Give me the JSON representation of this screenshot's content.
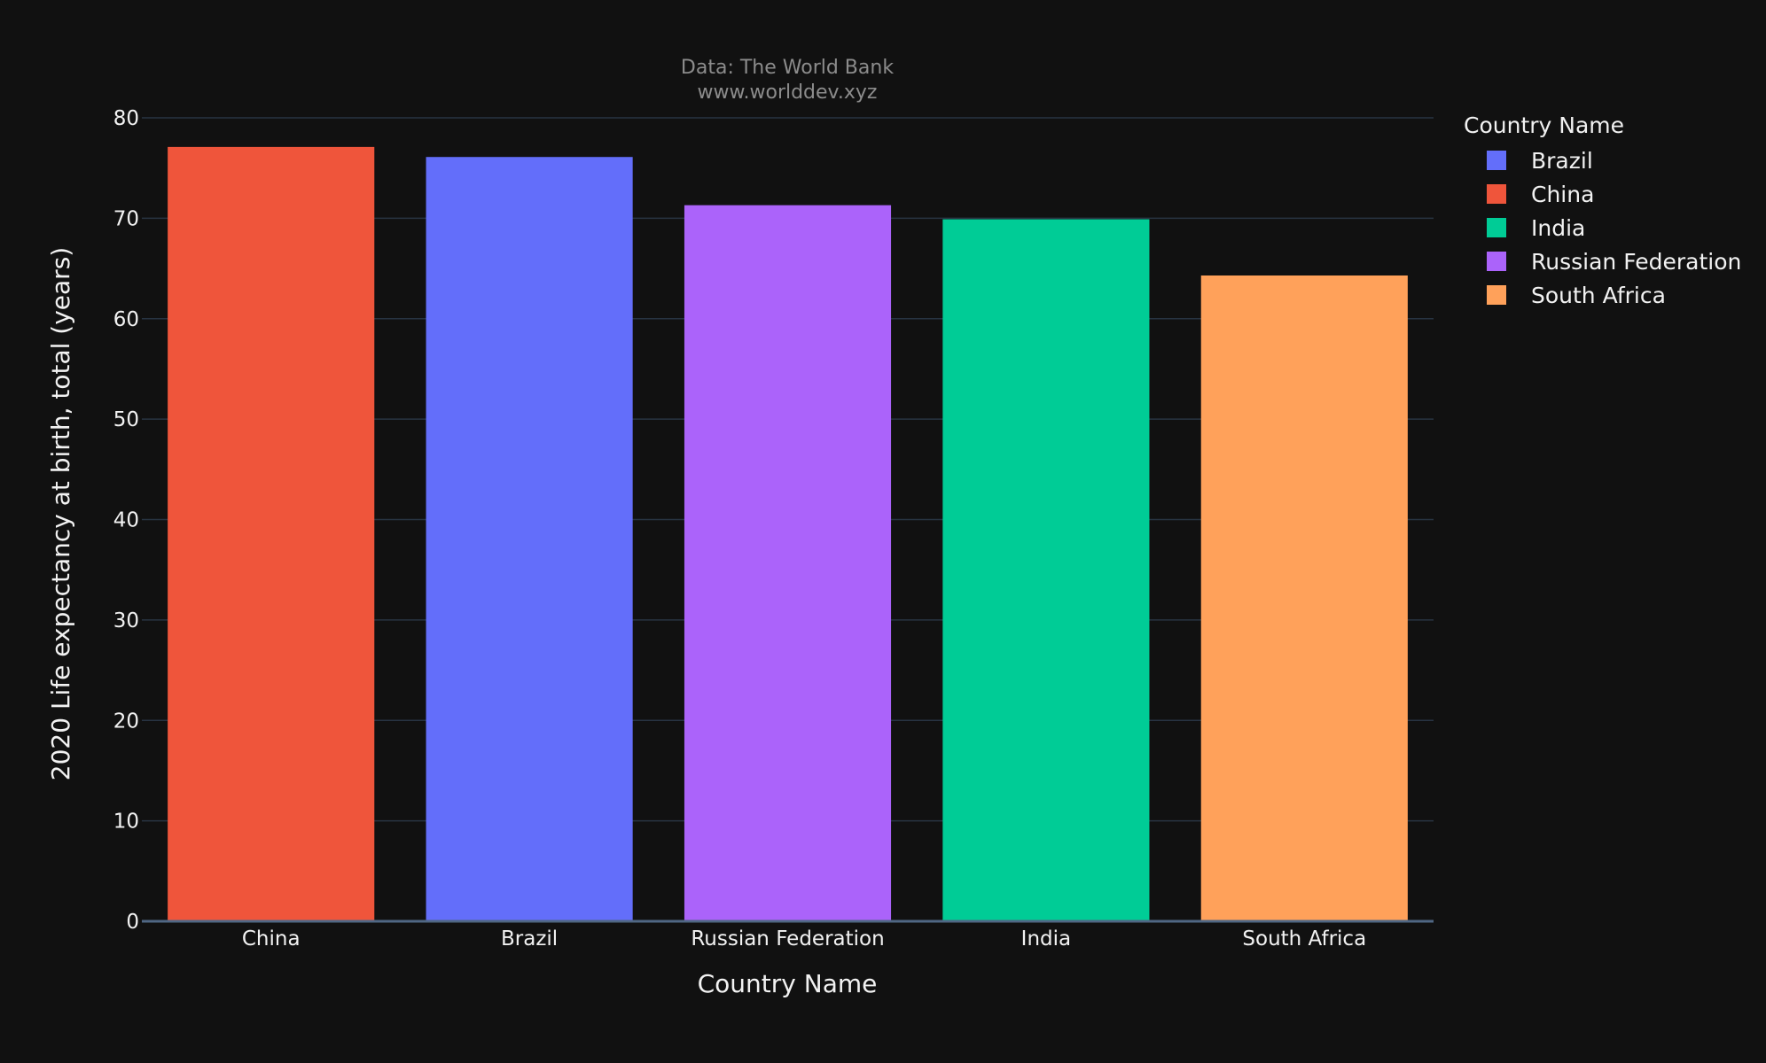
{
  "chart_data": {
    "type": "bar",
    "title_line1": "Data: The World Bank",
    "title_line2": "www.worlddev.xyz",
    "xlabel": "Country Name",
    "ylabel": "2020 Life expectancy at birth, total (years)",
    "categories": [
      "China",
      "Brazil",
      "Russian Federation",
      "India",
      "South Africa"
    ],
    "values": [
      77.1,
      76.1,
      71.3,
      69.9,
      64.3
    ],
    "bar_colors": [
      "#EF553B",
      "#636EFA",
      "#AB63FA",
      "#00CC96",
      "#FFA15A"
    ],
    "ylim": [
      0,
      80
    ],
    "yticks": [
      0,
      10,
      20,
      30,
      40,
      50,
      60,
      70,
      80
    ],
    "grid": true,
    "legend": {
      "title": "Country Name",
      "placement": "top-right",
      "entries": [
        {
          "name": "Brazil",
          "color": "#636EFA"
        },
        {
          "name": "China",
          "color": "#EF553B"
        },
        {
          "name": "India",
          "color": "#00CC96"
        },
        {
          "name": "Russian Federation",
          "color": "#AB63FA"
        },
        {
          "name": "South Africa",
          "color": "#FFA15A"
        }
      ]
    }
  }
}
